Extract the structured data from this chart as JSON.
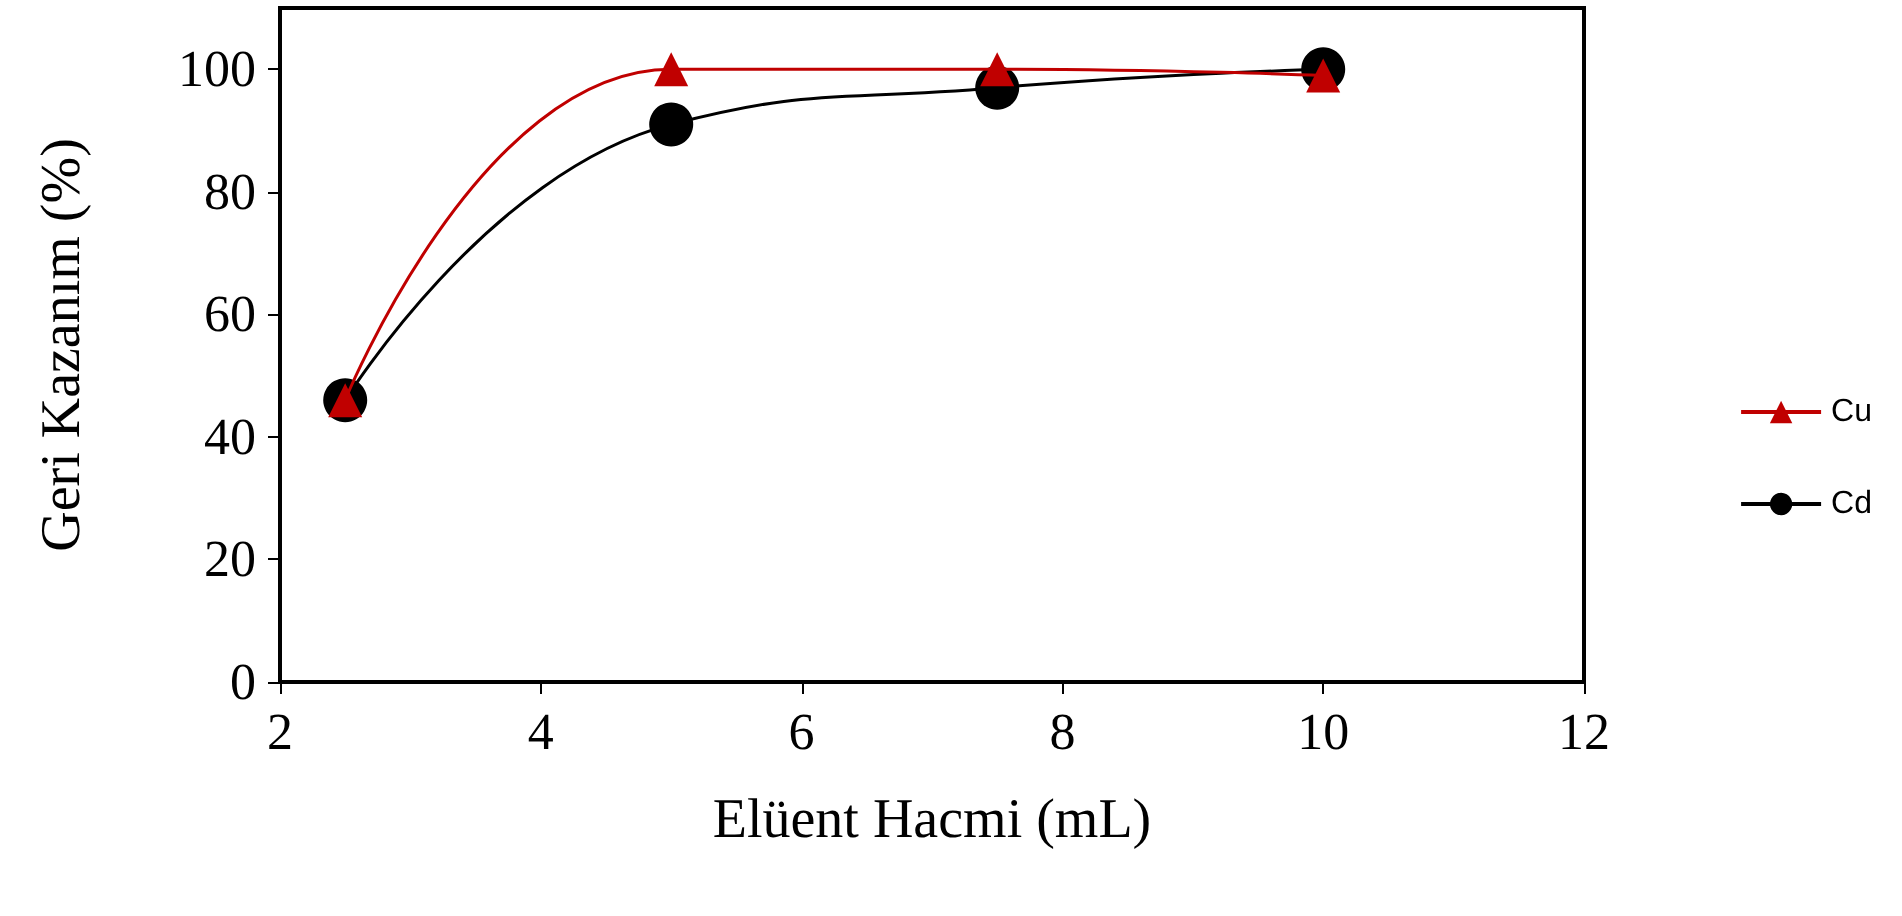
{
  "chart_data": {
    "type": "line",
    "xlabel": "Elüent Hacmi (mL)",
    "ylabel": "Geri Kazanım (%)",
    "x": [
      2.5,
      5,
      7.5,
      10
    ],
    "series": [
      {
        "name": "Cu",
        "color": "#c00000",
        "marker": "triangle",
        "values": [
          46,
          100,
          100,
          99
        ]
      },
      {
        "name": "Cd",
        "color": "#000000",
        "marker": "circle",
        "values": [
          46,
          91,
          97,
          100
        ]
      }
    ],
    "xlim": [
      2,
      12
    ],
    "xticks": [
      2,
      4,
      6,
      8,
      10,
      12
    ],
    "ylim": [
      0,
      110
    ],
    "yticks": [
      0,
      20,
      40,
      60,
      80,
      100
    ],
    "grid": false,
    "legend": "right",
    "line_style": "solid"
  }
}
